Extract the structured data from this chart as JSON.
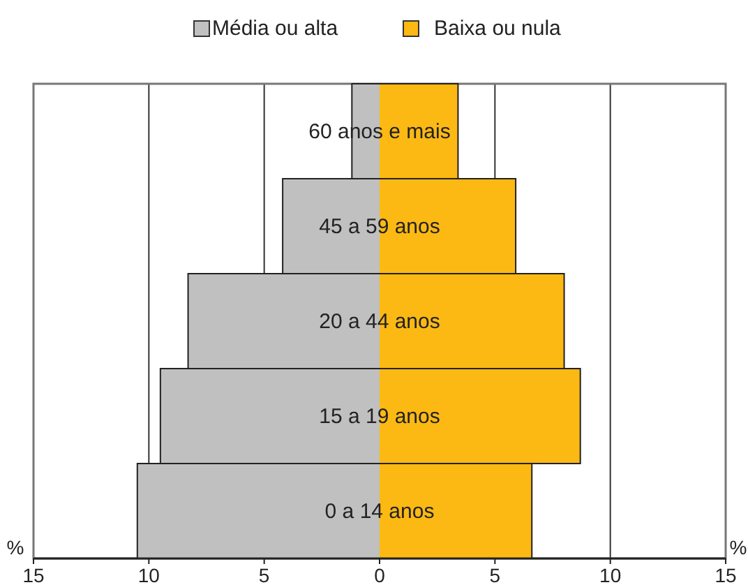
{
  "chart_data": {
    "type": "bar",
    "orientation": "horizontal",
    "categories": [
      "60 anos e mais",
      "45 a 59 anos",
      "20 a 44 anos",
      "15 a 19 anos",
      "0 a 14 anos"
    ],
    "series": [
      {
        "name": "Média ou alta",
        "color": "#c0c0c0",
        "values": [
          -1.2,
          -4.2,
          -8.3,
          -9.5,
          -10.5
        ]
      },
      {
        "name": "Baixa ou nula",
        "color": "#fdb913",
        "values": [
          3.4,
          5.9,
          8.0,
          8.7,
          6.6
        ]
      }
    ],
    "xlim": [
      -15,
      15
    ],
    "xticks": [
      {
        "value": -15,
        "label": "15"
      },
      {
        "value": -10,
        "label": "10"
      },
      {
        "value": -5,
        "label": "5"
      },
      0,
      5,
      10,
      15
    ],
    "xlabel": "%",
    "grid": "x",
    "legend": "top",
    "stacked": true
  }
}
